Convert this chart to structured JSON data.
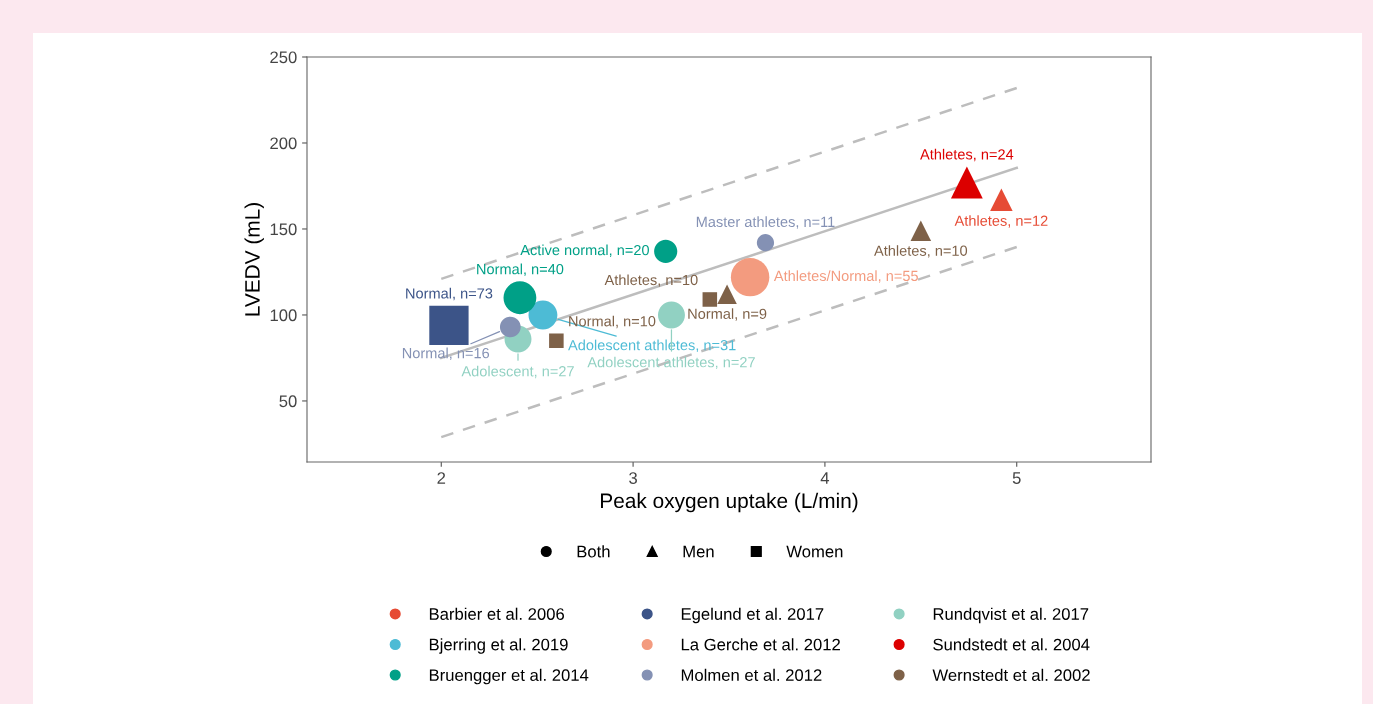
{
  "chart_data": {
    "type": "bubble",
    "xlabel": "Peak oxygen uptake (L/min)",
    "ylabel": "LVEDV (mL)",
    "xlim": [
      1.3,
      5.7
    ],
    "ylim": [
      14.5,
      250
    ],
    "xticks": [
      2,
      3,
      4,
      5
    ],
    "yticks": [
      50,
      100,
      150,
      200,
      250
    ],
    "grid": false,
    "legend": "bottom",
    "series": [
      {
        "name": "Both",
        "color": "#000000",
        "marker": "circle"
      },
      {
        "name": "Men",
        "color": "#000000",
        "marker": "triangle"
      },
      {
        "name": "Women",
        "color": "#000000",
        "marker": "square"
      },
      {
        "type": "line",
        "color": "#bdbdbd",
        "line_style": "solid",
        "x": [
          2,
          5
        ],
        "values": [
          75,
          185.5
        ]
      },
      {
        "type": "line",
        "color": "#bdbdbd",
        "line_style": "dashed",
        "x": [
          2,
          5
        ],
        "values": [
          121,
          232
        ]
      },
      {
        "type": "line",
        "color": "#bdbdbd",
        "line_style": "dashed",
        "x": [
          2,
          5
        ],
        "values": [
          29,
          139.5
        ]
      },
      {
        "name": "Barbier et al. 2006",
        "color": "#e64b35",
        "marker": "triangle",
        "x": [
          4.92
        ],
        "values": [
          167
        ],
        "sizes": [
          0.164
        ]
      },
      {
        "name": "Egelund et al. 2017",
        "color": "#3c5488",
        "marker": "square",
        "x": [
          2.04
        ],
        "values": [
          94
        ],
        "sizes": [
          1
        ]
      },
      {
        "name": "Rundqvist et al. 2017",
        "color": "#91d1c2",
        "marker": "circle",
        "x": [
          2.4,
          3.2
        ],
        "values": [
          86,
          100
        ],
        "sizes": [
          0.37,
          0.37
        ]
      },
      {
        "name": "Bjerring et al. 2019",
        "color": "#4dbbd5",
        "marker": "circle",
        "x": [
          2.53
        ],
        "values": [
          100
        ],
        "sizes": [
          0.425
        ]
      },
      {
        "name": "La Gerche et al. 2012",
        "color": "#f39b7f",
        "marker": "circle",
        "x": [
          3.61
        ],
        "values": [
          122
        ],
        "sizes": [
          0.753
        ]
      },
      {
        "name": "Sundstedt et al. 2004",
        "color": "#dc0000",
        "marker": "triangle",
        "x": [
          4.74
        ],
        "values": [
          177
        ],
        "sizes": [
          0.329
        ]
      },
      {
        "name": "Bruengger et al. 2014",
        "color": "#00a087",
        "marker": "circle",
        "x": [
          2.41,
          3.17
        ],
        "values": [
          110,
          137
        ],
        "sizes": [
          0.548,
          0.274
        ]
      },
      {
        "name": "Molmen et al. 2012",
        "color": "#8491b4",
        "marker": "circle",
        "x": [
          2.36,
          3.69
        ],
        "values": [
          93,
          142
        ],
        "sizes": [
          0.219,
          0.151
        ]
      },
      {
        "name": "Wernstedt et al. 2002",
        "color": "#7e6148",
        "marker": "square",
        "x": [
          2.6,
          3.4
        ],
        "values": [
          85,
          109
        ],
        "sizes": [
          0.137,
          0.137
        ]
      },
      {
        "color": "#7e6148",
        "marker": "triangle",
        "x": [
          3.49,
          4.5
        ],
        "values": [
          112,
          149
        ],
        "sizes": [
          0.123,
          0.137
        ]
      }
    ],
    "annotations": [
      {
        "text": "Athletes, n=24",
        "x": 4.74,
        "y": 177
      },
      {
        "text": "Athletes, n=12",
        "x": 4.92,
        "y": 167
      },
      {
        "text": "Athletes, n=10",
        "x": 4.5,
        "y": 149
      },
      {
        "text": "Master athletes, n=11",
        "x": 3.69,
        "y": 142
      },
      {
        "text": "Active normal, n=20",
        "x": 3.17,
        "y": 137
      },
      {
        "text": "Athletes/Normal, n=55",
        "x": 3.61,
        "y": 122
      },
      {
        "text": "Normal, n=9",
        "x": 3.49,
        "y": 112
      },
      {
        "text": "Athletes, n=10",
        "x": 3.4,
        "y": 109
      },
      {
        "text": "Normal, n=40",
        "x": 2.41,
        "y": 110
      },
      {
        "text": "Adolescent athletes, n=31",
        "x": 2.53,
        "y": 100
      },
      {
        "text": "Adolescent athletes, n=27",
        "x": 3.2,
        "y": 100
      },
      {
        "text": "Normal, n=73",
        "x": 2.04,
        "y": 94
      },
      {
        "text": "Normal, n=16",
        "x": 2.36,
        "y": 93
      },
      {
        "text": "Adolescent, n=27",
        "x": 2.4,
        "y": 86
      },
      {
        "text": "Normal, n=10",
        "x": 2.6,
        "y": 85
      }
    ]
  }
}
